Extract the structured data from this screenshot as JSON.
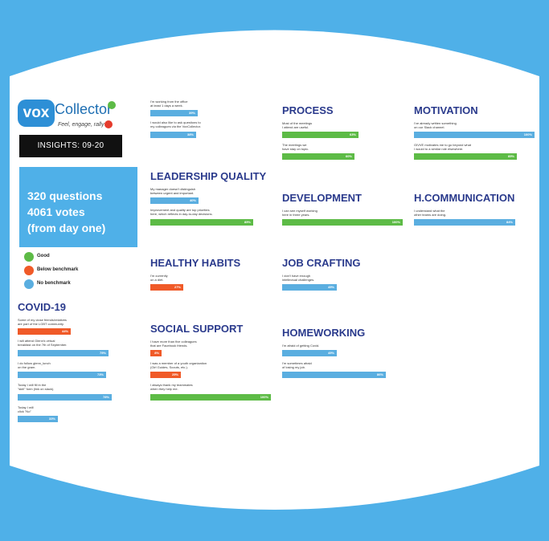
{
  "brand": {
    "logo_text_left": "vox",
    "logo_text_right": "Collector",
    "tagline": "Feel, engage, rally",
    "insights_label": "INSIGHTS: 09-20"
  },
  "stats": {
    "line1": "320 questions",
    "line2": "4061 votes",
    "line3": "(from day one)"
  },
  "legend": [
    {
      "label": "Good",
      "color": "#5dbb46"
    },
    {
      "label": "Below benchmark",
      "color": "#f05a28"
    },
    {
      "label": "No benchmark",
      "color": "#5aaee0"
    }
  ],
  "chart_data": [
    {
      "type": "bar",
      "title": "",
      "items": [
        {
          "label": "I'm working from the office\nat least 1 days a week.",
          "value": 39,
          "status": "No benchmark",
          "display": "39%"
        },
        {
          "label": "I would also like to ask questions to\nmy colleagues via the VoxCollector.",
          "value": 38,
          "status": "No benchmark",
          "display": "38%"
        }
      ]
    },
    {
      "type": "bar",
      "title": "COVID-19",
      "items": [
        {
          "label": "Some of my close friends/relatives\nare part of the LGBT community.",
          "value": 44,
          "status": "Below benchmark",
          "display": "44%"
        },
        {
          "label": "I will attend Glenn's virtual\nbreakfast on the 7th of September.",
          "value": 75,
          "status": "No benchmark",
          "display": "75%"
        },
        {
          "label": "I do follow glenn_lunch\non the gram.",
          "value": 73,
          "status": "No benchmark",
          "display": "73%"
        },
        {
          "label": "Today I will fill in the\n\"skill\" form (link on slack).",
          "value": 78,
          "status": "No benchmark",
          "display": "78%"
        },
        {
          "label": "Today I will\nclick \"No\"",
          "value": 33,
          "status": "No benchmark",
          "display": "33%"
        }
      ]
    },
    {
      "type": "bar",
      "title": "LEADERSHIP QUALITY",
      "items": [
        {
          "label": "My manager doesn't distinguish\nbetween urgent and important.",
          "value": 40,
          "status": "No benchmark",
          "display": "40%"
        },
        {
          "label": "Improvement and quality are top priorities\nhere, which reflects in day-to-day decisions.",
          "value": 85,
          "status": "Good",
          "display": "85%"
        }
      ]
    },
    {
      "type": "bar",
      "title": "HEALTHY HABITS",
      "items": [
        {
          "label": "I'm currently\non a diet.",
          "value": 27,
          "status": "Below benchmark",
          "display": "27%"
        }
      ]
    },
    {
      "type": "bar",
      "title": "SOCIAL SUPPORT",
      "items": [
        {
          "label": "I have more than five colleagues\nthat are Facebook friends.",
          "value": 8,
          "status": "Below benchmark",
          "display": "8%"
        },
        {
          "label": "I was a member of a youth organization\n(Girl Guides, Scouts, etc.).",
          "value": 25,
          "status": "Below benchmark",
          "display": "25%"
        },
        {
          "label": "I always thank my teammates\nwhen they help me.",
          "value": 100,
          "status": "Good",
          "display": "100%"
        }
      ]
    },
    {
      "type": "bar",
      "title": "PROCESS",
      "items": [
        {
          "label": "Most of the meetings\nI attend are useful.",
          "value": 63,
          "status": "Good",
          "display": "63%"
        },
        {
          "label": "The meetings we\nhave stay on topic.",
          "value": 60,
          "status": "Good",
          "display": "60%"
        }
      ]
    },
    {
      "type": "bar",
      "title": "DEVELOPMENT",
      "items": [
        {
          "label": "I can see myself working\nhere in three years.",
          "value": 100,
          "status": "Good",
          "display": "100%"
        }
      ]
    },
    {
      "type": "bar",
      "title": "JOB CRAFTING",
      "items": [
        {
          "label": "I don't have enough\nintellectual challenges.",
          "value": 45,
          "status": "No benchmark",
          "display": "45%"
        }
      ]
    },
    {
      "type": "bar",
      "title": "HOMEWORKING",
      "items": [
        {
          "label": "I'm afraid of getting Covid.",
          "value": 45,
          "status": "No benchmark",
          "display": "45%"
        },
        {
          "label": "I'm sometimes afraid\nof losing my job.",
          "value": 86,
          "status": "No benchmark",
          "display": "86%"
        }
      ]
    },
    {
      "type": "bar",
      "title": "MOTIVATION",
      "items": [
        {
          "label": "I've already written something\non our Slack channel.",
          "value": 100,
          "status": "No benchmark",
          "display": "100%"
        },
        {
          "label": "GIVVE motivates me to go beyond what\nI would to a similar role elsewhere.",
          "value": 85,
          "status": "Good",
          "display": "85%"
        }
      ]
    },
    {
      "type": "bar",
      "title": "H.COMMUNICATION",
      "items": [
        {
          "label": "I understand what the\nother teams are doing.",
          "value": 84,
          "status": "No benchmark",
          "display": "84%"
        }
      ]
    }
  ]
}
